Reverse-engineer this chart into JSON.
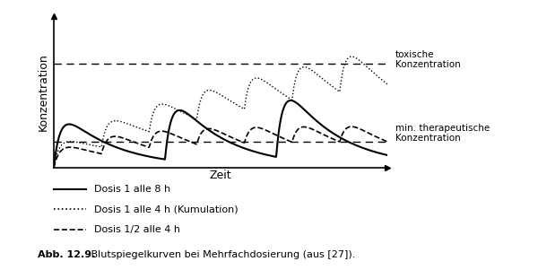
{
  "title": "",
  "xlabel": "Zeit",
  "ylabel": "Konzentration",
  "toxic_level": 0.72,
  "min_therapeutic_level": 0.18,
  "toxic_label": "toxische\nKonzentration",
  "min_label": "min. therapeutische\nKonzentration",
  "legend_solid": "Dosis 1 alle 8 h",
  "legend_dotted": "Dosis 1 alle 4 h (Kumulation)",
  "legend_dashed": "Dosis 1/2 alle 4 h",
  "caption_bold": "Abb. 12.9.",
  "caption_rest": " Blutspiegelkurven bei Mehrfachdosierung (aus [27]).",
  "background_color": "#ffffff",
  "line_color": "#000000",
  "ylim": [
    0,
    1.05
  ],
  "xlim": [
    0,
    10.5
  ]
}
